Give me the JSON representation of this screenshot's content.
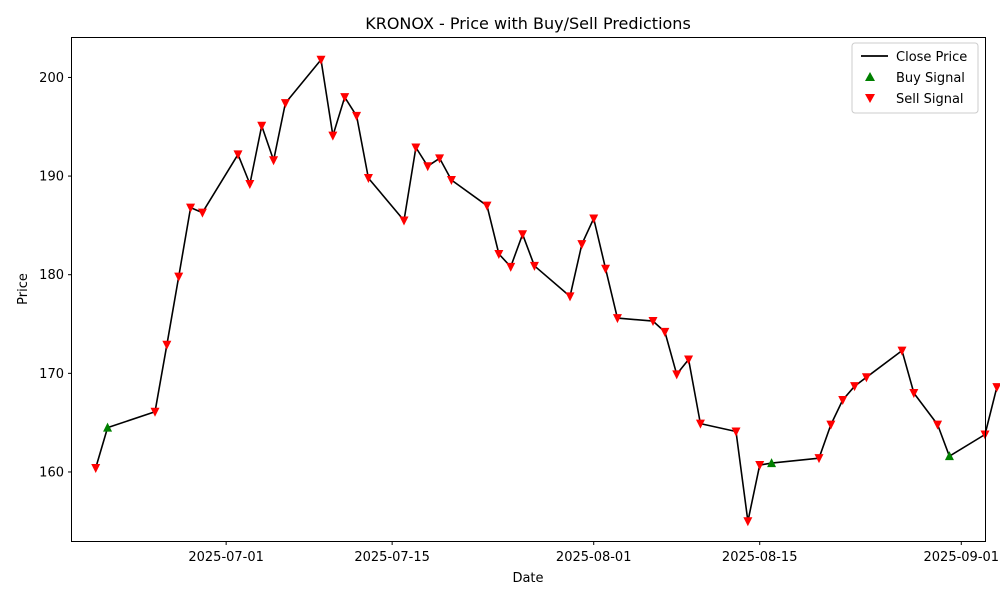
{
  "chart_data": {
    "type": "line",
    "title": "KRONOX - Price with Buy/Sell Predictions",
    "xlabel": "Date",
    "ylabel": "Price",
    "x_type": "date",
    "xlim": [
      "2025-06-18",
      "2025-09-03"
    ],
    "ylim": [
      153,
      204
    ],
    "x_ticks": [
      "2025-07-01",
      "2025-07-15",
      "2025-08-01",
      "2025-08-15",
      "2025-09-01"
    ],
    "y_ticks": [
      160,
      170,
      180,
      190,
      200
    ],
    "grid": false,
    "legend": {
      "position": "top-right",
      "entries": [
        {
          "label": "Close Price",
          "kind": "line",
          "color": "#000000"
        },
        {
          "label": "Buy Signal",
          "kind": "triangle-up",
          "color": "#008000"
        },
        {
          "label": "Sell Signal",
          "kind": "triangle-down",
          "color": "#ff0000"
        }
      ]
    },
    "series": [
      {
        "name": "Close Price",
        "kind": "line",
        "color": "#000000",
        "points": [
          {
            "date": "2025-06-20",
            "price": 160.4,
            "signal": "sell"
          },
          {
            "date": "2025-06-21",
            "price": 164.5,
            "signal": "buy"
          },
          {
            "date": "2025-06-25",
            "price": 166.1,
            "signal": "sell"
          },
          {
            "date": "2025-06-26",
            "price": 172.9,
            "signal": "sell"
          },
          {
            "date": "2025-06-27",
            "price": 179.8,
            "signal": "sell"
          },
          {
            "date": "2025-06-28",
            "price": 186.8,
            "signal": "sell"
          },
          {
            "date": "2025-06-29",
            "price": 186.3,
            "signal": "sell"
          },
          {
            "date": "2025-07-02",
            "price": 192.2,
            "signal": "sell"
          },
          {
            "date": "2025-07-03",
            "price": 189.2,
            "signal": "sell"
          },
          {
            "date": "2025-07-04",
            "price": 195.1,
            "signal": "sell"
          },
          {
            "date": "2025-07-05",
            "price": 191.6,
            "signal": "sell"
          },
          {
            "date": "2025-07-06",
            "price": 197.4,
            "signal": "sell"
          },
          {
            "date": "2025-07-09",
            "price": 201.8,
            "signal": "sell"
          },
          {
            "date": "2025-07-10",
            "price": 194.1,
            "signal": "sell"
          },
          {
            "date": "2025-07-11",
            "price": 198.0,
            "signal": "sell"
          },
          {
            "date": "2025-07-12",
            "price": 196.1,
            "signal": "sell"
          },
          {
            "date": "2025-07-13",
            "price": 189.8,
            "signal": "sell"
          },
          {
            "date": "2025-07-16",
            "price": 185.5,
            "signal": "sell"
          },
          {
            "date": "2025-07-17",
            "price": 192.9,
            "signal": "sell"
          },
          {
            "date": "2025-07-18",
            "price": 191.0,
            "signal": "sell"
          },
          {
            "date": "2025-07-19",
            "price": 191.8,
            "signal": "sell"
          },
          {
            "date": "2025-07-20",
            "price": 189.6,
            "signal": "sell"
          },
          {
            "date": "2025-07-23",
            "price": 187.0,
            "signal": "sell"
          },
          {
            "date": "2025-07-24",
            "price": 182.1,
            "signal": "sell"
          },
          {
            "date": "2025-07-25",
            "price": 180.8,
            "signal": "sell"
          },
          {
            "date": "2025-07-26",
            "price": 184.1,
            "signal": "sell"
          },
          {
            "date": "2025-07-27",
            "price": 180.9,
            "signal": "sell"
          },
          {
            "date": "2025-07-30",
            "price": 177.8,
            "signal": "sell"
          },
          {
            "date": "2025-07-31",
            "price": 183.1,
            "signal": "sell"
          },
          {
            "date": "2025-08-01",
            "price": 185.7,
            "signal": "sell"
          },
          {
            "date": "2025-08-02",
            "price": 180.6,
            "signal": "sell"
          },
          {
            "date": "2025-08-03",
            "price": 175.6,
            "signal": "sell"
          },
          {
            "date": "2025-08-06",
            "price": 175.3,
            "signal": "sell"
          },
          {
            "date": "2025-08-07",
            "price": 174.2,
            "signal": "sell"
          },
          {
            "date": "2025-08-08",
            "price": 169.9,
            "signal": "sell"
          },
          {
            "date": "2025-08-09",
            "price": 171.4,
            "signal": "sell"
          },
          {
            "date": "2025-08-10",
            "price": 164.9,
            "signal": "sell"
          },
          {
            "date": "2025-08-13",
            "price": 164.1,
            "signal": "sell"
          },
          {
            "date": "2025-08-14",
            "price": 155.0,
            "signal": "sell"
          },
          {
            "date": "2025-08-15",
            "price": 160.7,
            "signal": "sell"
          },
          {
            "date": "2025-08-16",
            "price": 160.9,
            "signal": "buy"
          },
          {
            "date": "2025-08-20",
            "price": 161.4,
            "signal": "sell"
          },
          {
            "date": "2025-08-21",
            "price": 164.8,
            "signal": "sell"
          },
          {
            "date": "2025-08-22",
            "price": 167.3,
            "signal": "sell"
          },
          {
            "date": "2025-08-23",
            "price": 168.7,
            "signal": "sell"
          },
          {
            "date": "2025-08-24",
            "price": 169.6,
            "signal": "sell"
          },
          {
            "date": "2025-08-27",
            "price": 172.3,
            "signal": "sell"
          },
          {
            "date": "2025-08-28",
            "price": 168.0,
            "signal": "sell"
          },
          {
            "date": "2025-08-30",
            "price": 164.8,
            "signal": "sell"
          },
          {
            "date": "2025-08-31",
            "price": 161.6,
            "signal": "buy"
          },
          {
            "date": "2025-09-03",
            "price": 163.8,
            "signal": "sell"
          },
          {
            "date": "2025-09-04",
            "price": 168.6,
            "signal": "sell"
          }
        ]
      }
    ]
  }
}
